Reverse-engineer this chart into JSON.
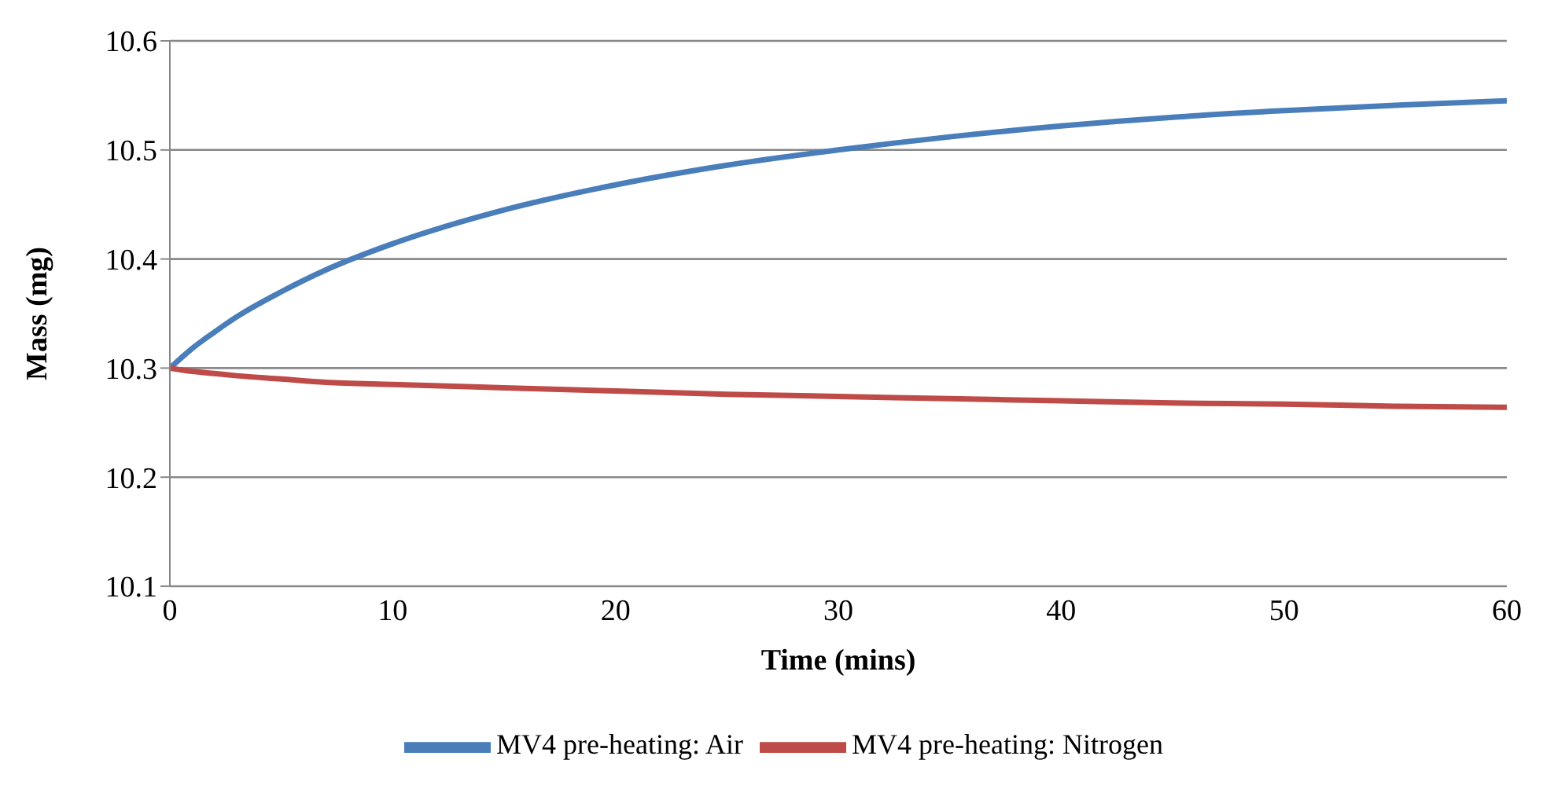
{
  "chart_data": {
    "type": "line",
    "xlabel": "Time (mins)",
    "ylabel": "Mass (mg)",
    "x": [
      0,
      1,
      2,
      3,
      5,
      7,
      10,
      15,
      20,
      25,
      30,
      35,
      40,
      45,
      50,
      55,
      60
    ],
    "series": [
      {
        "name": "MV4 pre-heating: Air",
        "color": "#4a7ebb",
        "values": [
          10.3,
          10.318,
          10.333,
          10.347,
          10.37,
          10.39,
          10.414,
          10.445,
          10.468,
          10.486,
          10.5,
          10.512,
          10.522,
          10.53,
          10.536,
          10.541,
          10.545
        ]
      },
      {
        "name": "MV4 pre-heating: Nitrogen",
        "color": "#be4b48",
        "values": [
          10.3,
          10.297,
          10.295,
          10.293,
          10.29,
          10.287,
          10.285,
          10.282,
          10.279,
          10.276,
          10.274,
          10.272,
          10.27,
          10.268,
          10.267,
          10.265,
          10.264
        ]
      }
    ],
    "xlim": [
      0,
      60
    ],
    "xticks": [
      0,
      10,
      20,
      30,
      40,
      50,
      60
    ],
    "ylim": [
      10.1,
      10.6
    ],
    "yticks": [
      10.1,
      10.2,
      10.3,
      10.4,
      10.5,
      10.6
    ],
    "grid": "y",
    "legend": "bottom",
    "marker": "none"
  }
}
